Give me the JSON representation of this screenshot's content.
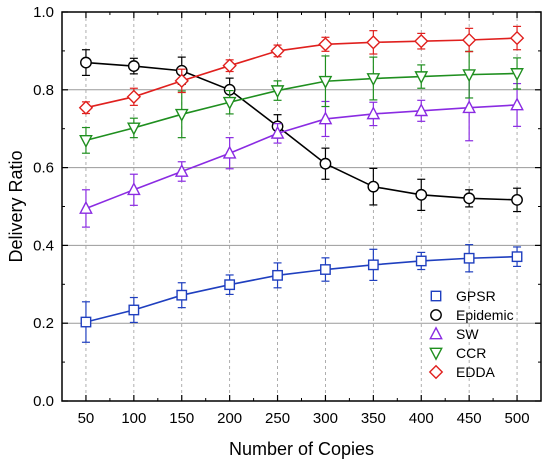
{
  "chart_data": {
    "type": "line",
    "xlabel": "Number of Copies",
    "ylabel": "Delivery Ratio",
    "x": [
      50,
      100,
      150,
      200,
      250,
      300,
      350,
      400,
      450,
      500
    ],
    "xlim": [
      25,
      525
    ],
    "ylim": [
      0.0,
      1.0
    ],
    "xticks": [
      "50",
      "100",
      "150",
      "200",
      "250",
      "300",
      "350",
      "400",
      "450",
      "500"
    ],
    "yticks": [
      "0.0",
      "0.2",
      "0.4",
      "0.6",
      "0.8",
      "1.0"
    ],
    "grid": "x dashed, y solid",
    "legend_position": "bottom-right",
    "series": [
      {
        "name": "GPSR",
        "marker": "square",
        "color": "#1f3fbf",
        "values": [
          0.203,
          0.234,
          0.272,
          0.299,
          0.323,
          0.338,
          0.35,
          0.36,
          0.367,
          0.371
        ],
        "errors": [
          0.052,
          0.032,
          0.032,
          0.025,
          0.032,
          0.03,
          0.04,
          0.022,
          0.035,
          0.025
        ]
      },
      {
        "name": "Epidemic",
        "marker": "circle",
        "color": "#000000",
        "values": [
          0.87,
          0.861,
          0.849,
          0.8,
          0.706,
          0.61,
          0.551,
          0.53,
          0.521,
          0.517
        ],
        "errors": [
          0.033,
          0.02,
          0.035,
          0.03,
          0.03,
          0.04,
          0.047,
          0.04,
          0.022,
          0.03
        ]
      },
      {
        "name": "SW",
        "marker": "triangle-up",
        "color": "#8a2be2",
        "values": [
          0.495,
          0.543,
          0.59,
          0.637,
          0.688,
          0.725,
          0.738,
          0.746,
          0.754,
          0.761
        ],
        "errors": [
          0.048,
          0.04,
          0.025,
          0.04,
          0.025,
          0.045,
          0.03,
          0.027,
          0.085,
          0.055
        ]
      },
      {
        "name": "CCR",
        "marker": "triangle-down",
        "color": "#1f8f1f",
        "values": [
          0.67,
          0.702,
          0.737,
          0.768,
          0.798,
          0.822,
          0.829,
          0.834,
          0.839,
          0.842
        ],
        "errors": [
          0.033,
          0.025,
          0.06,
          0.03,
          0.025,
          0.065,
          0.055,
          0.03,
          0.06,
          0.04
        ]
      },
      {
        "name": "EDDA",
        "marker": "diamond",
        "color": "#e0201e",
        "values": [
          0.754,
          0.782,
          0.823,
          0.862,
          0.9,
          0.917,
          0.922,
          0.925,
          0.928,
          0.933
        ],
        "errors": [
          0.015,
          0.022,
          0.03,
          0.015,
          0.015,
          0.018,
          0.03,
          0.02,
          0.03,
          0.03
        ]
      }
    ]
  }
}
